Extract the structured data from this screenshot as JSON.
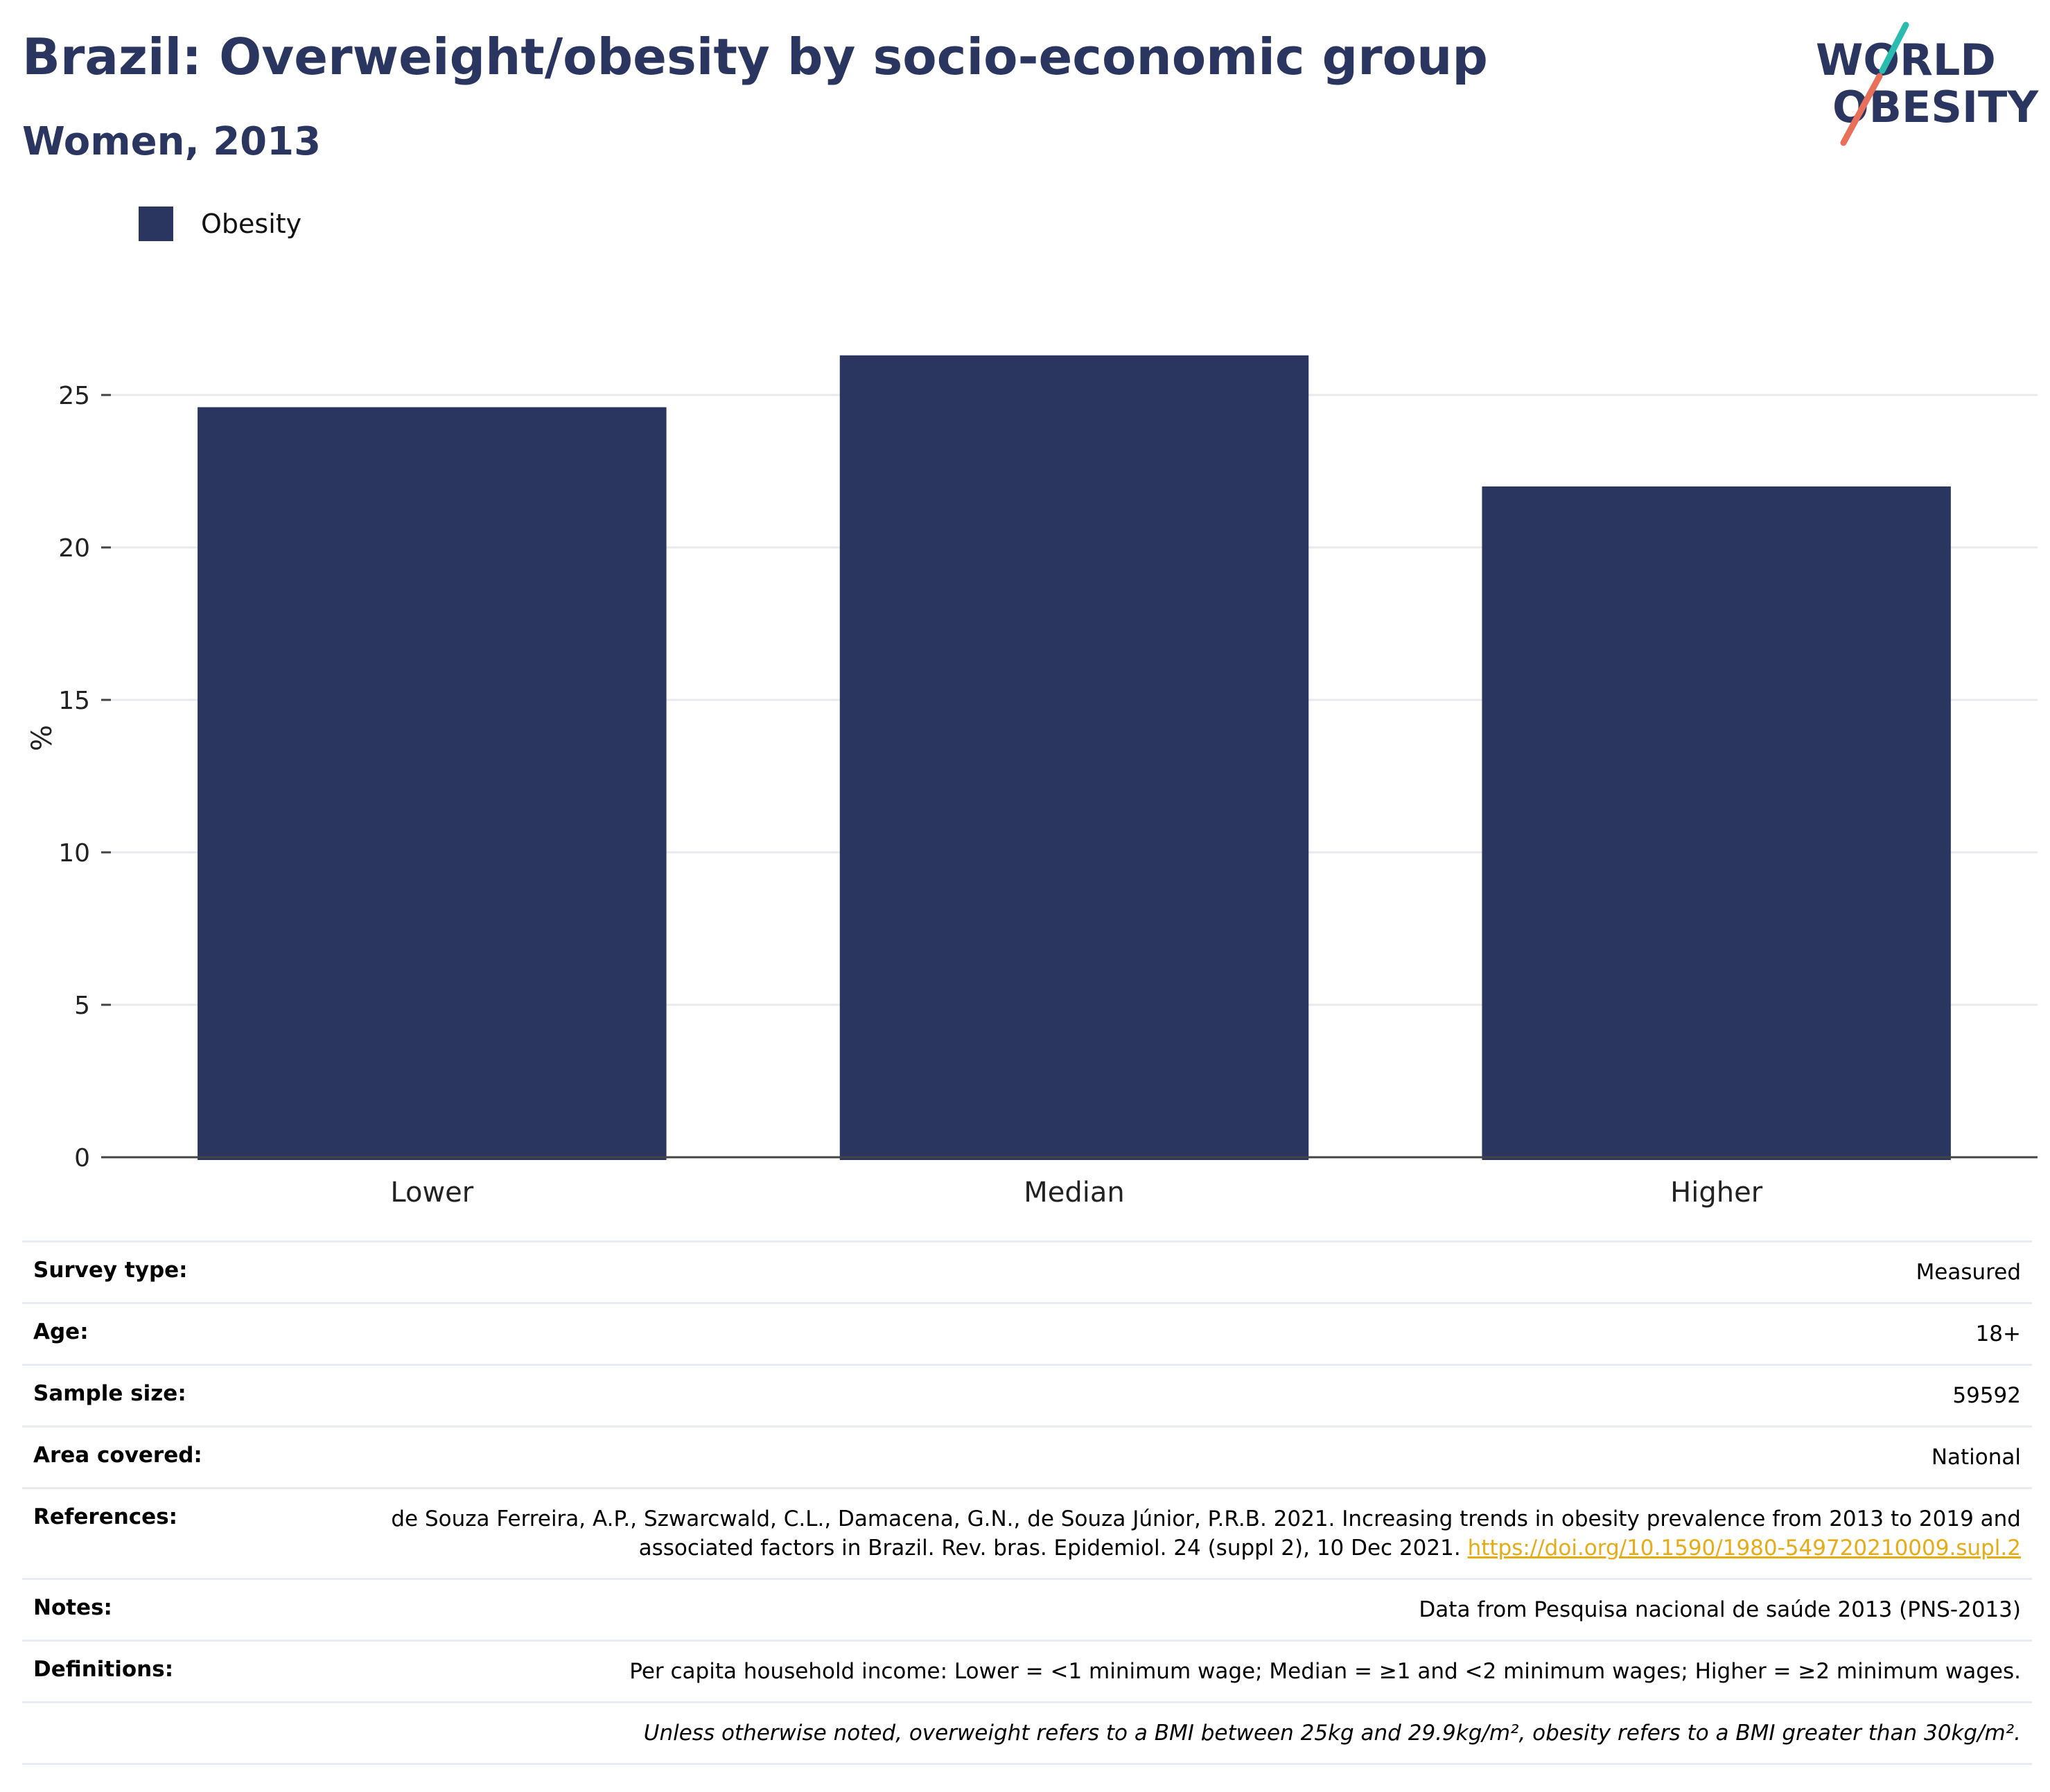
{
  "header": {
    "title": "Brazil: Overweight/obesity by socio-economic group",
    "subtitle": "Women, 2013"
  },
  "logo": {
    "line1": "WORLD",
    "line2": "OBESITY",
    "colors": {
      "text": "#2b3660",
      "teal": "#2bbcb0",
      "coral": "#e8705a"
    }
  },
  "legend": {
    "label": "Obesity",
    "color": "#2b3660"
  },
  "chart_data": {
    "type": "bar",
    "categories": [
      "Lower",
      "Median",
      "Higher"
    ],
    "series": [
      {
        "name": "Obesity",
        "values": [
          24.6,
          26.3,
          22.0
        ],
        "color": "#2b3660"
      }
    ],
    "title": "Brazil: Overweight/obesity by socio-economic group",
    "subtitle": "Women, 2013",
    "xlabel": "",
    "ylabel": "%",
    "ylim": [
      0,
      27.5
    ],
    "yticks": [
      0,
      5,
      10,
      15,
      20,
      25
    ],
    "grid": true,
    "legend_position": "top-left"
  },
  "meta": {
    "survey_type": {
      "label": "Survey type:",
      "value": "Measured"
    },
    "age": {
      "label": "Age:",
      "value": "18+"
    },
    "sample_size": {
      "label": "Sample size:",
      "value": "59592"
    },
    "area_covered": {
      "label": "Area covered:",
      "value": "National"
    },
    "references": {
      "label": "References:",
      "text": "de Souza Ferreira, A.P., Szwarcwald, C.L., Damacena, G.N., de Souza Júnior, P.R.B. 2021. Increasing trends in obesity prevalence from 2013 to 2019 and associated factors in Brazil. Rev. bras. Epidemiol. 24 (suppl 2), 10 Dec 2021. ",
      "link": "https://doi.org/10.1590/1980-549720210009.supl.2",
      "link_color": "#e6ac17"
    },
    "notes": {
      "label": "Notes:",
      "value": "Data from Pesquisa nacional de saúde 2013 (PNS-2013)"
    },
    "definitions": {
      "label": "Definitions:",
      "value": "Per capita household income: Lower = <1 minimum wage; Median = ≥1 and <2 minimum wages; Higher = ≥2 minimum wages."
    },
    "footnote": "Unless otherwise noted, overweight refers to a BMI between 25kg and 29.9kg/m², obesity refers to a BMI greater than 30kg/m²."
  }
}
